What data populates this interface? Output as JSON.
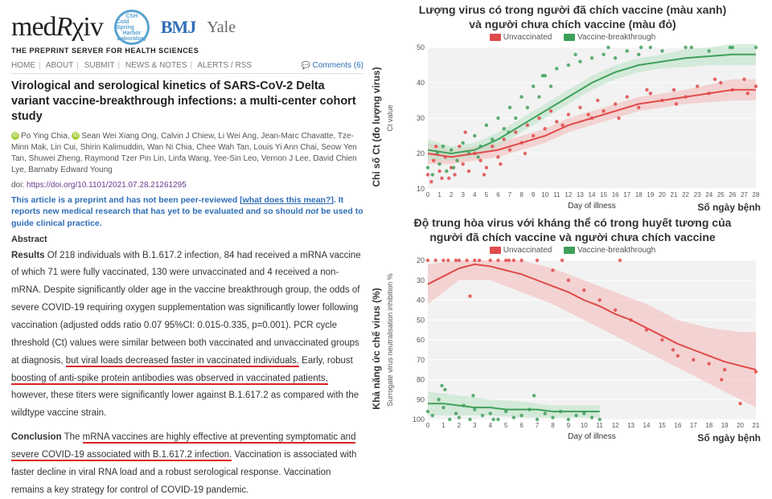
{
  "logo": {
    "brand": "medRχiv",
    "tagline": "THE PREPRINT SERVER FOR HEALTH SCIENCES",
    "csh_top": "CSH",
    "csh_mid": "Cold Spring",
    "csh_bot": "Harbor",
    "csh_lab": "Laboratory",
    "bmj": "BMJ",
    "yale": "Yale"
  },
  "nav": {
    "home": "HOME",
    "about": "ABOUT",
    "submit": "SUBMIT",
    "news": "NEWS & NOTES",
    "alerts": "ALERTS / RSS",
    "comments": "Comments (6)"
  },
  "title": "Virological and serological kinetics of SARS-CoV-2 Delta variant vaccine-breakthrough infections: a multi-center cohort study",
  "authors_line1": "Po Ying Chia,",
  "authors_line2": "Sean Wei Xiang Ong, Calvin J Chiew, Li Wei Ang, Jean-Marc Chavatte, Tze-Minn Mak, Lin Cui, Shirin Kalimuddin, Wan Ni Chia, Chee Wah Tan, Louis Yi Ann Chai, Seow Yen Tan, Shuwei Zheng, Raymond Tzer Pin Lin, Linfa Wang, Yee-Sin Leo, Vernon J Lee, David Chien Lye, Barnaby Edward Young",
  "doi_label": "doi:",
  "doi": "https://doi.org/10.1101/2021.07.28.21261295",
  "notice": "This article is a preprint and has not been peer-reviewed [",
  "notice_link": "what does this mean?",
  "notice_tail": "]. It reports new medical research that has yet to be evaluated and so should ",
  "notice_not": "not",
  "notice_end": " be used to guide clinical practice.",
  "abstract_head": "Abstract",
  "results_lead": "Results",
  "results_body_a": " Of 218 individuals with B.1.617.2 infection, 84 had received a mRNA vaccine of which 71 were fully vaccinated, 130 were unvaccinated and 4 received a non-mRNA. Despite significantly older age in the vaccine breakthrough group, the odds of severe COVID-19 requiring oxygen supplementation was significantly lower following vaccination (adjusted odds ratio 0.07 95%CI: 0.015-0.335, p=0.001). PCR cycle threshold (Ct) values were similar between both vaccinated and unvaccinated groups at diagnosis, ",
  "results_ul1": "but viral loads decreased faster in vaccinated individuals.",
  "results_body_b": " Early, robust ",
  "results_ul2": "boosting of anti-spike protein antibodies was observed in vaccinated patients,",
  "results_body_c": " however, these titers were significantly lower against B.1.617.2 as compared with the wildtype vaccine strain.",
  "concl_lead": "Conclusion",
  "concl_a": " The ",
  "concl_ul": "mRNA vaccines are highly effective at preventing symptomatic and severe COVID-19 associated with B.1.617.2 infection.",
  "concl_b": " Vaccination is associated with faster decline in viral RNA load and a robust serological response. Vaccination remains a key strategy for control of COVID-19 pandemic.",
  "chart1": {
    "title_l1": "Lượng virus có trong người đã chích vaccine (màu xanh)",
    "title_l2": "và người chưa chích vaccine (màu đỏ)",
    "legend_un": "Unvaccinated",
    "legend_vb": "Vaccine-breakthrough",
    "colors": {
      "un": "#E04A4A",
      "vb": "#3FA05A",
      "un_fill": "#F4B8B8",
      "vb_fill": "#B9E2C5",
      "grid": "#E6E6E6",
      "panel": "#F2F2F2",
      "axis": "#666"
    },
    "yaxis_label": "Chỉ số Ct (đo lượng virus)",
    "ysub": "Ct value",
    "xaxis_label": "Day of illness",
    "xaxis_overlay": "Số ngày bệnh",
    "ylim": [
      50,
      10
    ],
    "yticks": [
      10,
      20,
      30,
      40,
      50
    ],
    "xlim": [
      0,
      28
    ],
    "xticks": [
      0,
      1,
      2,
      3,
      4,
      5,
      6,
      7,
      8,
      9,
      10,
      11,
      12,
      13,
      14,
      15,
      16,
      17,
      18,
      19,
      20,
      21,
      22,
      23,
      24,
      25,
      26,
      27,
      28
    ],
    "un_line": [
      [
        0,
        20
      ],
      [
        2,
        19
      ],
      [
        4,
        20
      ],
      [
        6,
        21
      ],
      [
        8,
        23
      ],
      [
        10,
        25
      ],
      [
        12,
        28
      ],
      [
        14,
        30
      ],
      [
        16,
        32
      ],
      [
        18,
        34
      ],
      [
        20,
        35
      ],
      [
        22,
        36
      ],
      [
        24,
        37
      ],
      [
        26,
        38
      ],
      [
        28,
        38
      ]
    ],
    "vb_line": [
      [
        0,
        21
      ],
      [
        2,
        20
      ],
      [
        4,
        21
      ],
      [
        6,
        24
      ],
      [
        8,
        28
      ],
      [
        10,
        32
      ],
      [
        12,
        36
      ],
      [
        14,
        40
      ],
      [
        16,
        43
      ],
      [
        18,
        45
      ],
      [
        20,
        46
      ],
      [
        22,
        47
      ],
      [
        24,
        47.5
      ],
      [
        26,
        48
      ],
      [
        28,
        48
      ]
    ],
    "un_ci_hi": [
      [
        0,
        17
      ],
      [
        2,
        17
      ],
      [
        4,
        18
      ],
      [
        6,
        19
      ],
      [
        8,
        21
      ],
      [
        10,
        23
      ],
      [
        12,
        26
      ],
      [
        14,
        28
      ],
      [
        16,
        30
      ],
      [
        18,
        32
      ],
      [
        20,
        33
      ],
      [
        22,
        34
      ],
      [
        24,
        34.5
      ],
      [
        26,
        35
      ],
      [
        28,
        35
      ]
    ],
    "un_ci_lo": [
      [
        0,
        23
      ],
      [
        2,
        21
      ],
      [
        4,
        22
      ],
      [
        6,
        23
      ],
      [
        8,
        25
      ],
      [
        10,
        27
      ],
      [
        12,
        30
      ],
      [
        14,
        32
      ],
      [
        16,
        34
      ],
      [
        18,
        36
      ],
      [
        20,
        37
      ],
      [
        22,
        38
      ],
      [
        24,
        39.5
      ],
      [
        26,
        41
      ],
      [
        28,
        41
      ]
    ],
    "vb_ci_hi": [
      [
        0,
        18
      ],
      [
        2,
        18
      ],
      [
        4,
        19
      ],
      [
        6,
        22
      ],
      [
        8,
        26
      ],
      [
        10,
        30
      ],
      [
        12,
        34
      ],
      [
        14,
        38
      ],
      [
        16,
        41
      ],
      [
        18,
        43
      ],
      [
        20,
        44
      ],
      [
        22,
        44.5
      ],
      [
        24,
        45
      ],
      [
        26,
        45
      ],
      [
        28,
        45
      ]
    ],
    "vb_ci_lo": [
      [
        0,
        24
      ],
      [
        2,
        22
      ],
      [
        4,
        23
      ],
      [
        6,
        26
      ],
      [
        8,
        30
      ],
      [
        10,
        34
      ],
      [
        12,
        38
      ],
      [
        14,
        42
      ],
      [
        16,
        45
      ],
      [
        18,
        47
      ],
      [
        20,
        48
      ],
      [
        22,
        49.5
      ],
      [
        24,
        50
      ],
      [
        26,
        51
      ],
      [
        28,
        51
      ]
    ],
    "un_scatter": [
      [
        0,
        14
      ],
      [
        0.3,
        12
      ],
      [
        0.5,
        18
      ],
      [
        1,
        15
      ],
      [
        1.2,
        13
      ],
      [
        1.5,
        19
      ],
      [
        2,
        16
      ],
      [
        2.3,
        14
      ],
      [
        2.7,
        22
      ],
      [
        3,
        17
      ],
      [
        3.5,
        15
      ],
      [
        4,
        20
      ],
      [
        4.5,
        18
      ],
      [
        5,
        16
      ],
      [
        5.5,
        22
      ],
      [
        6,
        19
      ],
      [
        6.5,
        24
      ],
      [
        7,
        21
      ],
      [
        7.5,
        26
      ],
      [
        8,
        23
      ],
      [
        8.5,
        28
      ],
      [
        9,
        25
      ],
      [
        9.5,
        30
      ],
      [
        10,
        27
      ],
      [
        10.5,
        32
      ],
      [
        11,
        29
      ],
      [
        12,
        31
      ],
      [
        13,
        33
      ],
      [
        14,
        30
      ],
      [
        14.5,
        35
      ],
      [
        15,
        32
      ],
      [
        16,
        34
      ],
      [
        17,
        36
      ],
      [
        18,
        33
      ],
      [
        19,
        37
      ],
      [
        20,
        35
      ],
      [
        21,
        38
      ],
      [
        22,
        36
      ],
      [
        23,
        39
      ],
      [
        24,
        37
      ],
      [
        25,
        40
      ],
      [
        26,
        38
      ],
      [
        27,
        41
      ],
      [
        28,
        39
      ],
      [
        0.7,
        22
      ],
      [
        1.8,
        13
      ],
      [
        3.2,
        26
      ],
      [
        4.8,
        14
      ],
      [
        6.2,
        17
      ],
      [
        8.3,
        20
      ],
      [
        11.5,
        28
      ],
      [
        13.7,
        31
      ],
      [
        16.3,
        30
      ],
      [
        18.7,
        38
      ],
      [
        21.2,
        34
      ],
      [
        24.5,
        41
      ],
      [
        27.3,
        37
      ]
    ],
    "vb_scatter": [
      [
        0,
        16
      ],
      [
        0.4,
        14
      ],
      [
        0.8,
        20
      ],
      [
        1,
        17
      ],
      [
        1.6,
        15
      ],
      [
        2,
        21
      ],
      [
        2.5,
        18
      ],
      [
        3,
        23
      ],
      [
        3.5,
        20
      ],
      [
        4,
        25
      ],
      [
        4.5,
        22
      ],
      [
        5,
        28
      ],
      [
        5.5,
        24
      ],
      [
        6,
        30
      ],
      [
        6.5,
        27
      ],
      [
        7,
        33
      ],
      [
        7.5,
        30
      ],
      [
        8,
        36
      ],
      [
        8.5,
        33
      ],
      [
        9,
        39
      ],
      [
        9.5,
        36
      ],
      [
        10,
        42
      ],
      [
        10.5,
        39
      ],
      [
        11,
        44
      ],
      [
        12,
        45
      ],
      [
        13,
        46
      ],
      [
        14,
        47
      ],
      [
        15,
        48
      ],
      [
        16,
        47
      ],
      [
        17,
        49
      ],
      [
        18,
        48
      ],
      [
        19,
        50
      ],
      [
        20,
        49
      ],
      [
        22,
        50
      ],
      [
        24,
        49
      ],
      [
        26,
        50
      ],
      [
        28,
        50
      ],
      [
        1.3,
        22
      ],
      [
        2.2,
        16
      ],
      [
        4.3,
        19
      ],
      [
        6.9,
        26
      ],
      [
        9.8,
        42
      ],
      [
        12.6,
        48
      ],
      [
        15.4,
        50
      ],
      [
        18.2,
        50
      ],
      [
        22.5,
        50
      ],
      [
        25.8,
        50
      ]
    ]
  },
  "chart2": {
    "title_l1": "Độ trung hòa virus với kháng thể có trong huyết tương của",
    "title_l2": "người đã chích vaccine và người chưa chích vaccine",
    "legend_un": "Unvaccinated",
    "legend_vb": "Vaccine-breakthrough",
    "colors": {
      "un": "#E04A4A",
      "vb": "#3FA05A",
      "un_fill": "#F4B8B8",
      "vb_fill": "#B9E2C5",
      "grid": "#E6E6E6",
      "panel": "#F2F2F2",
      "axis": "#666"
    },
    "yaxis_label": "Khả năng ức chế virus (%)",
    "ysub": "Surrogate virus neutralisation inhibition %",
    "xaxis_label": "Day of illness",
    "xaxis_overlay": "Số ngày bệnh",
    "ylim": [
      20,
      100
    ],
    "yticks": [
      20,
      30,
      40,
      50,
      60,
      70,
      80,
      90,
      100
    ],
    "xlim": [
      0,
      21
    ],
    "xticks": [
      0,
      1,
      2,
      3,
      4,
      5,
      6,
      7,
      8,
      9,
      10,
      11,
      12,
      13,
      14,
      15,
      16,
      17,
      18,
      19,
      20,
      21
    ],
    "un_line": [
      [
        0,
        32
      ],
      [
        1,
        28
      ],
      [
        2,
        24
      ],
      [
        3,
        22
      ],
      [
        4,
        23
      ],
      [
        5,
        25
      ],
      [
        6,
        27
      ],
      [
        7,
        30
      ],
      [
        8,
        33
      ],
      [
        9,
        36
      ],
      [
        10,
        40
      ],
      [
        11,
        43
      ],
      [
        12,
        47
      ],
      [
        13,
        50
      ],
      [
        14,
        54
      ],
      [
        15,
        58
      ],
      [
        16,
        62
      ],
      [
        17,
        65
      ],
      [
        18,
        68
      ],
      [
        19,
        71
      ],
      [
        20,
        73
      ],
      [
        21,
        75
      ]
    ],
    "vb_line": [
      [
        0,
        92
      ],
      [
        1,
        92
      ],
      [
        2,
        93
      ],
      [
        3,
        94
      ],
      [
        4,
        94
      ],
      [
        5,
        95
      ],
      [
        6,
        95
      ],
      [
        7,
        95
      ],
      [
        8,
        96
      ],
      [
        9,
        96
      ],
      [
        10,
        96
      ],
      [
        11,
        96
      ]
    ],
    "un_ci_hi": [
      [
        0,
        42
      ],
      [
        2,
        30
      ],
      [
        4,
        30
      ],
      [
        6,
        36
      ],
      [
        8,
        42
      ],
      [
        10,
        50
      ],
      [
        12,
        58
      ],
      [
        14,
        66
      ],
      [
        16,
        74
      ],
      [
        18,
        82
      ],
      [
        20,
        90
      ],
      [
        21,
        94
      ]
    ],
    "un_ci_lo": [
      [
        0,
        22
      ],
      [
        2,
        20
      ],
      [
        4,
        20
      ],
      [
        6,
        20
      ],
      [
        8,
        24
      ],
      [
        10,
        30
      ],
      [
        12,
        36
      ],
      [
        14,
        42
      ],
      [
        16,
        50
      ],
      [
        18,
        54
      ],
      [
        20,
        56
      ],
      [
        21,
        56
      ]
    ],
    "vb_ci_hi": [
      [
        0,
        98
      ],
      [
        2,
        98
      ],
      [
        4,
        98
      ],
      [
        6,
        99
      ],
      [
        8,
        99
      ],
      [
        10,
        99
      ],
      [
        11,
        99
      ]
    ],
    "vb_ci_lo": [
      [
        0,
        86
      ],
      [
        2,
        88
      ],
      [
        4,
        90
      ],
      [
        6,
        91
      ],
      [
        8,
        93
      ],
      [
        10,
        93
      ],
      [
        11,
        93
      ]
    ],
    "un_scatter": [
      [
        0,
        20
      ],
      [
        0.5,
        20
      ],
      [
        1,
        20
      ],
      [
        1.3,
        20
      ],
      [
        1.8,
        20
      ],
      [
        2,
        20
      ],
      [
        2.5,
        20
      ],
      [
        3,
        20
      ],
      [
        3.3,
        20
      ],
      [
        4,
        20
      ],
      [
        4.5,
        20
      ],
      [
        5,
        20
      ],
      [
        5.5,
        20
      ],
      [
        6,
        20
      ],
      [
        7,
        20
      ],
      [
        8,
        25
      ],
      [
        9,
        30
      ],
      [
        10,
        35
      ],
      [
        11,
        40
      ],
      [
        12,
        45
      ],
      [
        13,
        50
      ],
      [
        14,
        55
      ],
      [
        15,
        60
      ],
      [
        16,
        68
      ],
      [
        17,
        70
      ],
      [
        18,
        72
      ],
      [
        19,
        75
      ],
      [
        20,
        92
      ],
      [
        21,
        76
      ],
      [
        2.7,
        38
      ],
      [
        5.2,
        20
      ],
      [
        8.6,
        20
      ],
      [
        12.3,
        20
      ],
      [
        15.7,
        65
      ],
      [
        18.8,
        80
      ]
    ],
    "vb_scatter": [
      [
        0,
        96
      ],
      [
        0.3,
        98
      ],
      [
        0.7,
        90
      ],
      [
        1,
        94
      ],
      [
        1.4,
        100
      ],
      [
        1.8,
        97
      ],
      [
        2,
        99
      ],
      [
        2.3,
        93
      ],
      [
        2.7,
        100
      ],
      [
        3,
        95
      ],
      [
        3.5,
        98
      ],
      [
        4,
        97
      ],
      [
        4.5,
        100
      ],
      [
        5,
        96
      ],
      [
        5.5,
        99
      ],
      [
        6,
        98
      ],
      [
        6.5,
        95
      ],
      [
        7,
        100
      ],
      [
        7.5,
        97
      ],
      [
        8,
        99
      ],
      [
        8.5,
        96
      ],
      [
        9,
        100
      ],
      [
        9.5,
        98
      ],
      [
        10,
        97
      ],
      [
        10.5,
        99
      ],
      [
        11,
        100
      ],
      [
        1.1,
        85
      ],
      [
        2.9,
        88
      ],
      [
        0.9,
        83
      ],
      [
        4.2,
        100
      ],
      [
        6.8,
        88
      ]
    ]
  }
}
